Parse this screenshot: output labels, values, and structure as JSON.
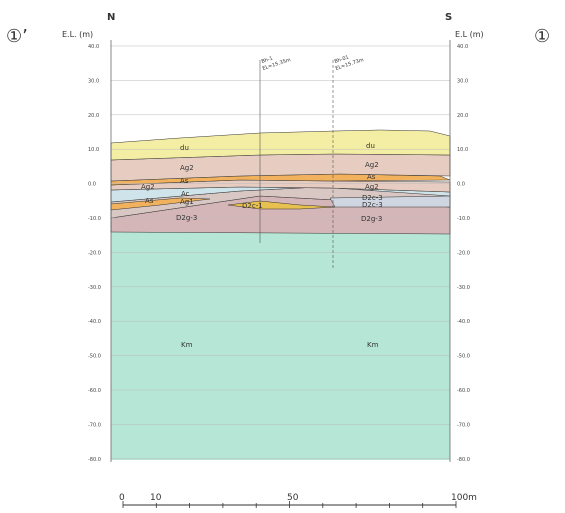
{
  "markers": {
    "left": "①’",
    "right": "①"
  },
  "directions": {
    "left": "N",
    "right": "S"
  },
  "axis_label": {
    "left": "E.L. (m)",
    "right": "E.L (m)"
  },
  "elevation_ticks": [
    "40.0",
    "30.0",
    "20.0",
    "10.0",
    "0.0",
    "-10.0",
    "-20.0",
    "-30.0",
    "-40.0",
    "-50.0",
    "-60.0",
    "-70.0",
    "-80.0"
  ],
  "boreholes": [
    {
      "name": "Bh-1",
      "elevation": "EL=15.35m"
    },
    {
      "name": "Bh-01",
      "elevation": "EL=15.73m"
    }
  ],
  "layers_left": {
    "du": "du",
    "ag2_upper": "Ag2",
    "as_upper": "As",
    "ag2_lower": "Ag2",
    "ac": "Ac",
    "as_lower": "As",
    "ag1": "Ag1",
    "d2c1": "D2c-1",
    "d2g3": "D2g-3",
    "km": "Km"
  },
  "layers_right": {
    "du": "du",
    "ag2_upper": "Ag2",
    "as": "As",
    "ag2_lower": "Ag2",
    "d2c3a": "D2c-3",
    "d2c3b": "D2c-3",
    "d2g3": "D2g-3",
    "km": "Km"
  },
  "scale_bar": {
    "labels": [
      "0",
      "10",
      "50",
      "100m"
    ]
  },
  "colors": {
    "du": "#f4eea4",
    "ag2": "#e7cdc1",
    "as": "#f2b25d",
    "ac": "#cfe4ea",
    "ag1": "#d8c7c2",
    "d2c": "#e8c050",
    "d2g3": "#d5b6b8",
    "km": "#b6e6d6"
  }
}
